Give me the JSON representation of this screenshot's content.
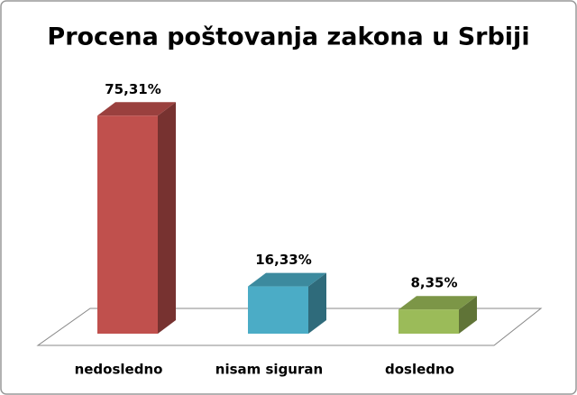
{
  "chart_data": {
    "type": "bar3d",
    "title": "Procena poštovanja zakona u Srbiji",
    "categories": [
      "nedosledno",
      "nisam siguran",
      "dosledno"
    ],
    "values": [
      75.31,
      16.33,
      8.35
    ],
    "value_labels": [
      "75,31%",
      "16,33%",
      "8,35%"
    ],
    "colors": [
      "#c0504d",
      "#4bacc6",
      "#9bbb59"
    ]
  }
}
